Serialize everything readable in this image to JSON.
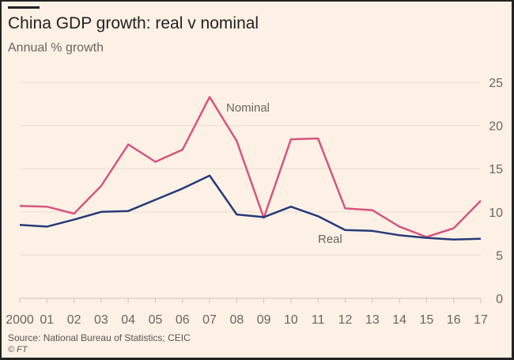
{
  "chart_data": {
    "type": "line",
    "title": "China GDP growth: real v nominal",
    "subtitle": "Annual % growth",
    "xlabel": "",
    "ylabel": "",
    "x": [
      "2000",
      "01",
      "02",
      "03",
      "04",
      "05",
      "06",
      "07",
      "08",
      "09",
      "10",
      "11",
      "12",
      "13",
      "14",
      "15",
      "16",
      "17"
    ],
    "ylim": [
      0,
      25
    ],
    "yticks": [
      0,
      5,
      10,
      15,
      20,
      25
    ],
    "grid": true,
    "series": [
      {
        "name": "Nominal",
        "color": "#d6557f",
        "values": [
          10.7,
          10.6,
          9.8,
          13.0,
          17.8,
          15.8,
          17.2,
          23.3,
          18.2,
          9.3,
          18.4,
          18.5,
          10.4,
          10.2,
          8.3,
          7.1,
          8.1,
          11.3
        ]
      },
      {
        "name": "Real",
        "color": "#263a7a",
        "values": [
          8.5,
          8.3,
          9.1,
          10.0,
          10.1,
          11.4,
          12.7,
          14.2,
          9.7,
          9.4,
          10.6,
          9.5,
          7.9,
          7.8,
          7.3,
          7.0,
          6.8,
          6.9
        ]
      }
    ],
    "source": "Source: National Bureau of Statistics; CEIC",
    "credit": "© FT"
  }
}
